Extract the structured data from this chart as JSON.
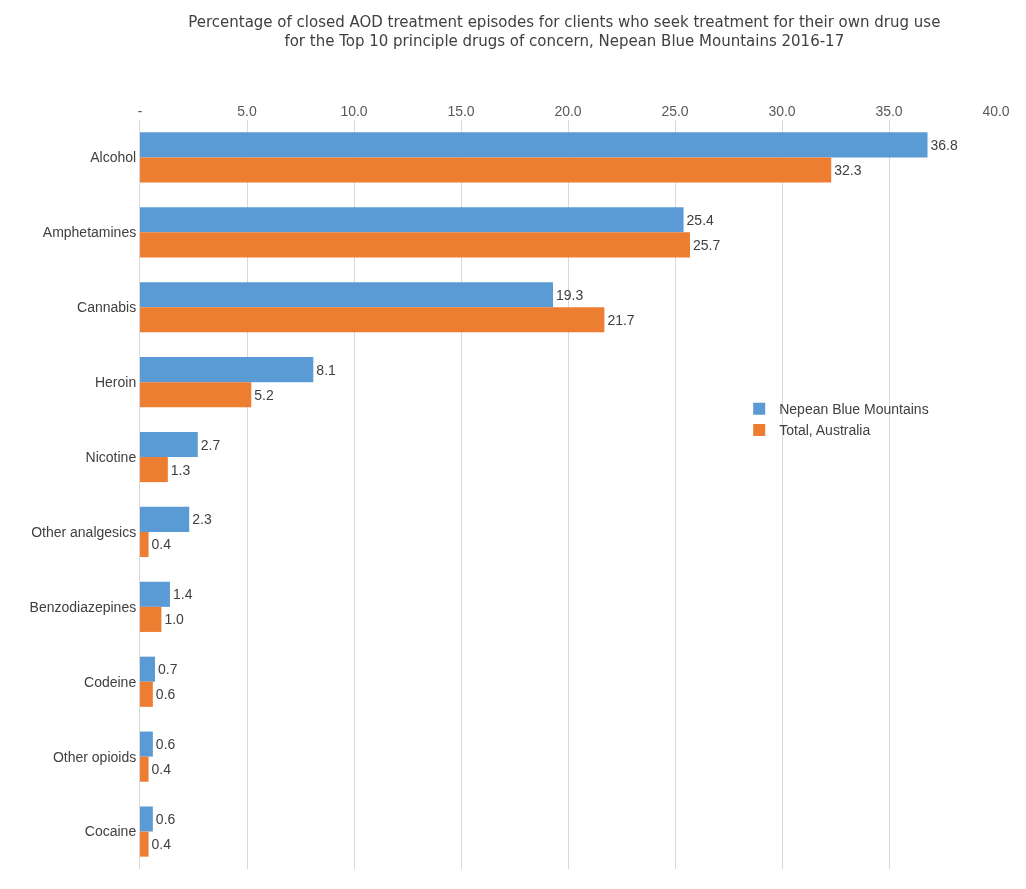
{
  "chart_data": {
    "type": "bar",
    "orientation": "horizontal",
    "title": "Percentage of closed AOD treatment episodes for clients who seek treatment for their own drug use\nfor the Top 10 principle drugs of concern, Nepean Blue Mountains 2016-17",
    "categories": [
      "Alcohol",
      "Amphetamines",
      "Cannabis",
      "Heroin",
      "Nicotine",
      "Other analgesics",
      "Benzodiazepines",
      "Codeine",
      "Other opioids",
      "Cocaine"
    ],
    "series": [
      {
        "name": "Nepean Blue Mountains",
        "color": "#5b9bd5",
        "values": [
          36.8,
          25.4,
          19.3,
          8.1,
          2.7,
          2.3,
          1.4,
          0.7,
          0.6,
          0.6
        ],
        "value_labels": [
          "36.8",
          "25.4",
          "19.3",
          "8.1",
          "2.7",
          "2.3",
          "1.4",
          "0.7",
          "0.6",
          "0.6"
        ]
      },
      {
        "name": "Total, Australia",
        "color": "#ed7d31",
        "values": [
          32.3,
          25.7,
          21.7,
          5.2,
          1.3,
          0.4,
          1.0,
          0.6,
          0.4,
          0.4
        ],
        "value_labels": [
          "32.3",
          "25.7",
          "21.7",
          "5.2",
          "1.3",
          "0.4",
          "1.0",
          "0.6",
          "0.4",
          "0.4"
        ]
      }
    ],
    "xlim": [
      0,
      40
    ],
    "xticks": [
      {
        "value": 0,
        "label": "-"
      },
      {
        "value": 5,
        "label": "5.0"
      },
      {
        "value": 10,
        "label": "10.0"
      },
      {
        "value": 15,
        "label": "15.0"
      },
      {
        "value": 20,
        "label": "20.0"
      },
      {
        "value": 25,
        "label": "25.0"
      },
      {
        "value": 30,
        "label": "30.0"
      },
      {
        "value": 35,
        "label": "35.0"
      },
      {
        "value": 40,
        "label": "40.0"
      }
    ],
    "grid": "x",
    "legend": "right"
  }
}
